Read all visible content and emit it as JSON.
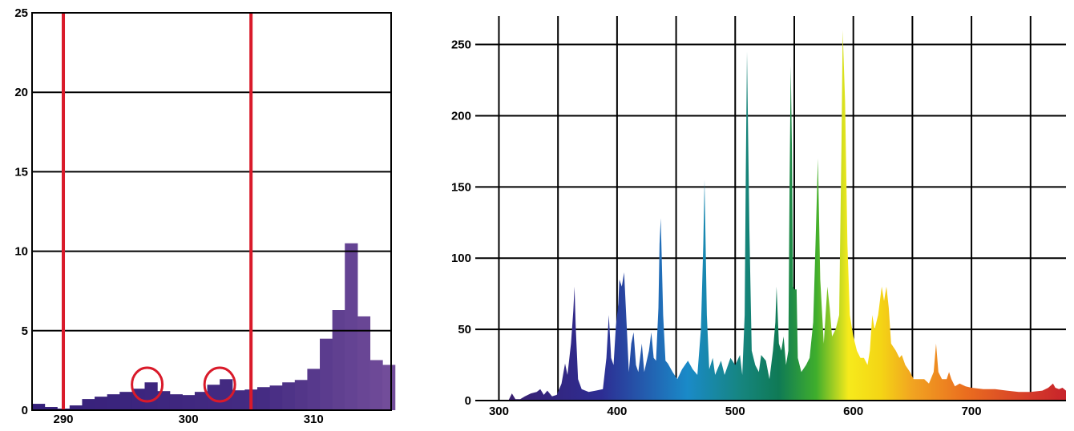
{
  "chart_data": [
    {
      "type": "bar",
      "title": "",
      "xlabel": "",
      "ylabel": "",
      "xlim": [
        287.5,
        316.2
      ],
      "ylim": [
        0,
        25
      ],
      "grid": "horizontal",
      "x_ticks": [
        "290",
        "300",
        "310"
      ],
      "y_ticks": [
        "0",
        "5",
        "10",
        "15",
        "20",
        "25"
      ],
      "bin_width": 1,
      "bin_starts": [
        287.5,
        288.5,
        289.5,
        290.5,
        291.5,
        292.5,
        293.5,
        294.5,
        295.5,
        296.5,
        297.5,
        298.5,
        299.5,
        300.5,
        301.5,
        302.5,
        303.5,
        304.5,
        305.5,
        306.5,
        307.5,
        308.5,
        309.5,
        310.5,
        311.5,
        312.5,
        313.5,
        314.5,
        315.5
      ],
      "values": [
        0.4,
        0.2,
        0.1,
        0.3,
        0.7,
        0.85,
        1.0,
        1.15,
        1.35,
        1.75,
        1.2,
        1.0,
        0.95,
        1.15,
        1.6,
        1.95,
        1.25,
        1.3,
        1.45,
        1.55,
        1.75,
        1.9,
        2.6,
        4.5,
        6.3,
        10.5,
        5.9,
        3.15,
        2.85
      ],
      "colors": {
        "start": "#35207a",
        "end": "#76509c"
      },
      "reference_lines": [
        290,
        305
      ],
      "reference_color": "#d91a2a",
      "circled_bins": [
        296.7,
        302.5
      ]
    },
    {
      "type": "area",
      "title": "",
      "xlabel": "",
      "ylabel": "",
      "xlim": [
        280,
        780
      ],
      "ylim": [
        0,
        270
      ],
      "grid": "both",
      "x_gridlines": [
        300,
        350,
        400,
        450,
        500,
        550,
        600,
        650,
        700,
        750
      ],
      "y_gridlines": [
        0,
        50,
        100,
        150,
        200,
        250
      ],
      "x_ticks": [
        "300",
        "400",
        "500",
        "600",
        "700"
      ],
      "y_ticks": [
        "0",
        "50",
        "100",
        "150",
        "200",
        "250"
      ],
      "colors": "spectral (violet to red by wavelength)",
      "points": [
        [
          305,
          0
        ],
        [
          308,
          0
        ],
        [
          311,
          5
        ],
        [
          314,
          1
        ],
        [
          318,
          1
        ],
        [
          322,
          3
        ],
        [
          327,
          5
        ],
        [
          332,
          6
        ],
        [
          335,
          8
        ],
        [
          338,
          4
        ],
        [
          341,
          7
        ],
        [
          345,
          3
        ],
        [
          349,
          4
        ],
        [
          353,
          12
        ],
        [
          356,
          26
        ],
        [
          358,
          18
        ],
        [
          361,
          40
        ],
        [
          363,
          63
        ],
        [
          364,
          80
        ],
        [
          365,
          52
        ],
        [
          367,
          15
        ],
        [
          370,
          8
        ],
        [
          376,
          6
        ],
        [
          382,
          7
        ],
        [
          388,
          8
        ],
        [
          391,
          30
        ],
        [
          393,
          60
        ],
        [
          395,
          30
        ],
        [
          397,
          25
        ],
        [
          399,
          52
        ],
        [
          401,
          68
        ],
        [
          402,
          85
        ],
        [
          404,
          80
        ],
        [
          406,
          90
        ],
        [
          408,
          55
        ],
        [
          410,
          20
        ],
        [
          412,
          40
        ],
        [
          414,
          48
        ],
        [
          416,
          25
        ],
        [
          418,
          20
        ],
        [
          421,
          40
        ],
        [
          423,
          20
        ],
        [
          427,
          35
        ],
        [
          429,
          48
        ],
        [
          431,
          30
        ],
        [
          433,
          28
        ],
        [
          435,
          65
        ],
        [
          436,
          110
        ],
        [
          437,
          128
        ],
        [
          439,
          60
        ],
        [
          441,
          28
        ],
        [
          443,
          26
        ],
        [
          447,
          20
        ],
        [
          451,
          15
        ],
        [
          455,
          22
        ],
        [
          460,
          28
        ],
        [
          464,
          22
        ],
        [
          468,
          18
        ],
        [
          471,
          50
        ],
        [
          473,
          110
        ],
        [
          474,
          155
        ],
        [
          476,
          60
        ],
        [
          478,
          22
        ],
        [
          481,
          30
        ],
        [
          483,
          18
        ],
        [
          488,
          28
        ],
        [
          491,
          18
        ],
        [
          496,
          30
        ],
        [
          500,
          25
        ],
        [
          504,
          32
        ],
        [
          506,
          18
        ],
        [
          508,
          60
        ],
        [
          509,
          160
        ],
        [
          510,
          245
        ],
        [
          512,
          120
        ],
        [
          514,
          35
        ],
        [
          517,
          25
        ],
        [
          520,
          20
        ],
        [
          522,
          32
        ],
        [
          526,
          28
        ],
        [
          529,
          15
        ],
        [
          532,
          35
        ],
        [
          534,
          55
        ],
        [
          535,
          80
        ],
        [
          537,
          40
        ],
        [
          539,
          35
        ],
        [
          541,
          45
        ],
        [
          543,
          25
        ],
        [
          545,
          35
        ],
        [
          546,
          150
        ],
        [
          547,
          235
        ],
        [
          548,
          180
        ],
        [
          549,
          80
        ],
        [
          550,
          78
        ],
        [
          552,
          78
        ],
        [
          553,
          30
        ],
        [
          556,
          20
        ],
        [
          560,
          25
        ],
        [
          563,
          30
        ],
        [
          566,
          55
        ],
        [
          568,
          110
        ],
        [
          570,
          170
        ],
        [
          572,
          85
        ],
        [
          575,
          40
        ],
        [
          578,
          80
        ],
        [
          580,
          65
        ],
        [
          582,
          45
        ],
        [
          585,
          50
        ],
        [
          588,
          60
        ],
        [
          590,
          180
        ],
        [
          591,
          260
        ],
        [
          593,
          210
        ],
        [
          595,
          110
        ],
        [
          597,
          60
        ],
        [
          600,
          45
        ],
        [
          603,
          35
        ],
        [
          606,
          30
        ],
        [
          609,
          30
        ],
        [
          612,
          25
        ],
        [
          614,
          35
        ],
        [
          616,
          60
        ],
        [
          618,
          50
        ],
        [
          621,
          60
        ],
        [
          624,
          80
        ],
        [
          626,
          70
        ],
        [
          628,
          80
        ],
        [
          630,
          65
        ],
        [
          632,
          40
        ],
        [
          636,
          35
        ],
        [
          639,
          30
        ],
        [
          641,
          32
        ],
        [
          644,
          25
        ],
        [
          648,
          20
        ],
        [
          651,
          15
        ],
        [
          656,
          15
        ],
        [
          660,
          15
        ],
        [
          664,
          12
        ],
        [
          668,
          20
        ],
        [
          670,
          40
        ],
        [
          672,
          20
        ],
        [
          675,
          15
        ],
        [
          679,
          15
        ],
        [
          681,
          20
        ],
        [
          683,
          15
        ],
        [
          686,
          10
        ],
        [
          690,
          12
        ],
        [
          695,
          10
        ],
        [
          700,
          9
        ],
        [
          710,
          8
        ],
        [
          720,
          8
        ],
        [
          730,
          7
        ],
        [
          740,
          6
        ],
        [
          750,
          6
        ],
        [
          760,
          7
        ],
        [
          765,
          9
        ],
        [
          769,
          12
        ],
        [
          771,
          9
        ],
        [
          774,
          8
        ],
        [
          777,
          9
        ],
        [
          780,
          7
        ]
      ]
    }
  ]
}
